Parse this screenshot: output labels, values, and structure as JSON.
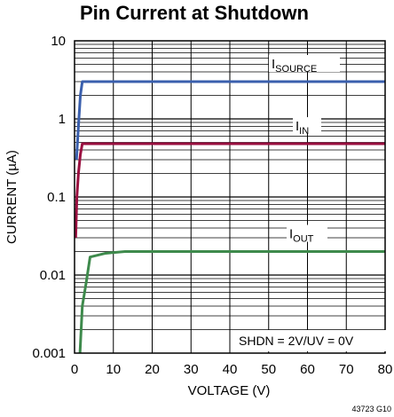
{
  "chart_data": {
    "type": "line",
    "title": "Pin Current at Shutdown",
    "xlabel": "VOLTAGE (V)",
    "ylabel": "CURRENT (µA)",
    "xlim": [
      0,
      80
    ],
    "ylim": [
      0.001,
      10
    ],
    "yscale": "log",
    "grid": true,
    "x_ticks": [
      "0",
      "10",
      "20",
      "30",
      "40",
      "50",
      "60",
      "70",
      "80"
    ],
    "y_ticks": [
      "0.001",
      "0.01",
      "0.1",
      "1",
      "10"
    ],
    "series": [
      {
        "name": "ISOURCE",
        "label_main": "I",
        "label_sub": "SOURCE",
        "color": "#3a5fad",
        "x": [
          0.5,
          1,
          1.5,
          2,
          80
        ],
        "y": [
          0.3,
          0.8,
          2,
          3,
          3
        ]
      },
      {
        "name": "IIN",
        "label_main": "I",
        "label_sub": "IN",
        "color": "#9a1040",
        "x": [
          0.3,
          0.6,
          1,
          1.5,
          2,
          80
        ],
        "y": [
          0.03,
          0.1,
          0.2,
          0.35,
          0.48,
          0.48
        ]
      },
      {
        "name": "IOUT",
        "label_main": "I",
        "label_sub": "OUT",
        "color": "#3e8a4c",
        "x": [
          1.4,
          2,
          3,
          4,
          8,
          13,
          80
        ],
        "y": [
          0.001,
          0.004,
          0.008,
          0.017,
          0.019,
          0.02,
          0.02
        ]
      }
    ],
    "annotation": "SHDN = 2V/UV = 0V",
    "figure_id": "43723 G10"
  }
}
